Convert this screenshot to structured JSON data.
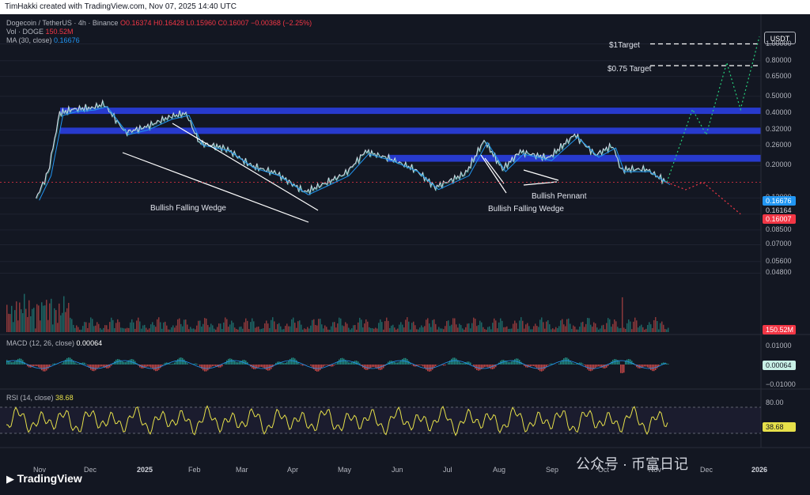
{
  "header": {
    "credit": "TimHakki created with TradingView.com, Nov 07, 2025 14:40 UTC"
  },
  "legend": {
    "symbol": "Dogecoin / TetherUS · 4h · Binance",
    "ohlc": "O0.16374 H0.16428 L0.15960 C0.16007 −0.00368 (−2.25%)",
    "vol_label": "Vol · DOGE",
    "vol_value": "150.52M",
    "ma_label": "MA (30, close)",
    "ma_value": "0.16676",
    "macd_label": "MACD (12, 26, close)",
    "macd_value": "0.00064",
    "rsi_label": "RSI (14, close)",
    "rsi_value": "38.68"
  },
  "currency": "USDT",
  "price_tags": {
    "ma": "0.16676",
    "last_high": "0.16164",
    "close": "0.16007",
    "volume": "150.52M",
    "macd": "0.00064",
    "rsi": "38.68"
  },
  "colors": {
    "bg": "#131722",
    "up": "#26a69a",
    "down": "#ef5350",
    "ma": "#2196f3",
    "zone": "#2a3ee0",
    "rsi": "#e6e04a"
  },
  "annotations": {
    "target1": "$1Target",
    "target075": "$0.75 Target",
    "wedge1": "Bullish Falling Wedge",
    "wedge2": "Bullish Falling Wedge",
    "pennant": "Bullish Pennant"
  },
  "branding": {
    "logo": "TradingView",
    "watermark": "公众号 · 币富日记"
  },
  "chart_data": {
    "type": "line",
    "title": "Dogecoin / TetherUS · 4h · Binance",
    "y_scale": "log",
    "y_ticks": [
      "1.00000",
      "0.80000",
      "0.65000",
      "0.50000",
      "0.40000",
      "0.32000",
      "0.26000",
      "0.20000",
      "0.13000",
      "0.10500",
      "0.08500",
      "0.07000",
      "0.05600",
      "0.04800"
    ],
    "x_ticks": [
      "Nov",
      "Dec",
      "2025",
      "Feb",
      "Mar",
      "Apr",
      "May",
      "Jun",
      "Jul",
      "Aug",
      "Sep",
      "Oct",
      "Nov",
      "Dec",
      "2026"
    ],
    "price_points": [
      [
        "Oct 28",
        0.13
      ],
      [
        "Nov 5",
        0.18
      ],
      [
        "Nov 12",
        0.4
      ],
      [
        "Nov 20",
        0.42
      ],
      [
        "Dec 1",
        0.43
      ],
      [
        "Dec 8",
        0.45
      ],
      [
        "Dec 20",
        0.31
      ],
      [
        "Jan 1",
        0.33
      ],
      [
        "Jan 15",
        0.38
      ],
      [
        "Jan 25",
        0.4
      ],
      [
        "Feb 3",
        0.27
      ],
      [
        "Feb 20",
        0.25
      ],
      [
        "Mar 5",
        0.2
      ],
      [
        "Mar 20",
        0.18
      ],
      [
        "Apr 7",
        0.14
      ],
      [
        "Apr 20",
        0.16
      ],
      [
        "May 1",
        0.18
      ],
      [
        "May 12",
        0.24
      ],
      [
        "May 25",
        0.22
      ],
      [
        "Jun 10",
        0.19
      ],
      [
        "Jun 22",
        0.15
      ],
      [
        "Jul 10",
        0.18
      ],
      [
        "Jul 21",
        0.28
      ],
      [
        "Aug 2",
        0.19
      ],
      [
        "Aug 12",
        0.24
      ],
      [
        "Aug 28",
        0.22
      ],
      [
        "Sep 13",
        0.3
      ],
      [
        "Sep 25",
        0.23
      ],
      [
        "Oct 5",
        0.26
      ],
      [
        "Oct 10",
        0.19
      ],
      [
        "Oct 25",
        0.19
      ],
      [
        "Nov 7",
        0.16
      ]
    ],
    "resistance_zones": [
      [
        0.4,
        0.43
      ],
      [
        0.31,
        0.33
      ],
      [
        0.21,
        0.23
      ]
    ],
    "targets": [
      {
        "label": "$1Target",
        "value": 1.0
      },
      {
        "label": "$0.75 Target",
        "value": 0.75
      }
    ],
    "projection_bull": [
      [
        "Nov 7",
        0.16
      ],
      [
        "Nov 22",
        0.42
      ],
      [
        "Nov 30",
        0.3
      ],
      [
        "Dec 12",
        0.78
      ],
      [
        "Dec 20",
        0.42
      ],
      [
        "Dec 31",
        1.1
      ]
    ],
    "projection_bear": [
      [
        "Nov 7",
        0.16
      ],
      [
        "Nov 18",
        0.145
      ],
      [
        "Nov 28",
        0.16
      ],
      [
        "Dec 20",
        0.105
      ]
    ],
    "macd": {
      "label": "MACD (12, 26, close)",
      "value": 0.00064,
      "ticks": [
        0.01,
        -0.01
      ]
    },
    "rsi": {
      "label": "RSI (14, close)",
      "value": 38.68,
      "ticks": [
        80
      ]
    },
    "volume": {
      "label": "Vol · DOGE",
      "value": "150.52M"
    },
    "ma": {
      "label": "MA (30, close)",
      "value": 0.16676
    }
  }
}
